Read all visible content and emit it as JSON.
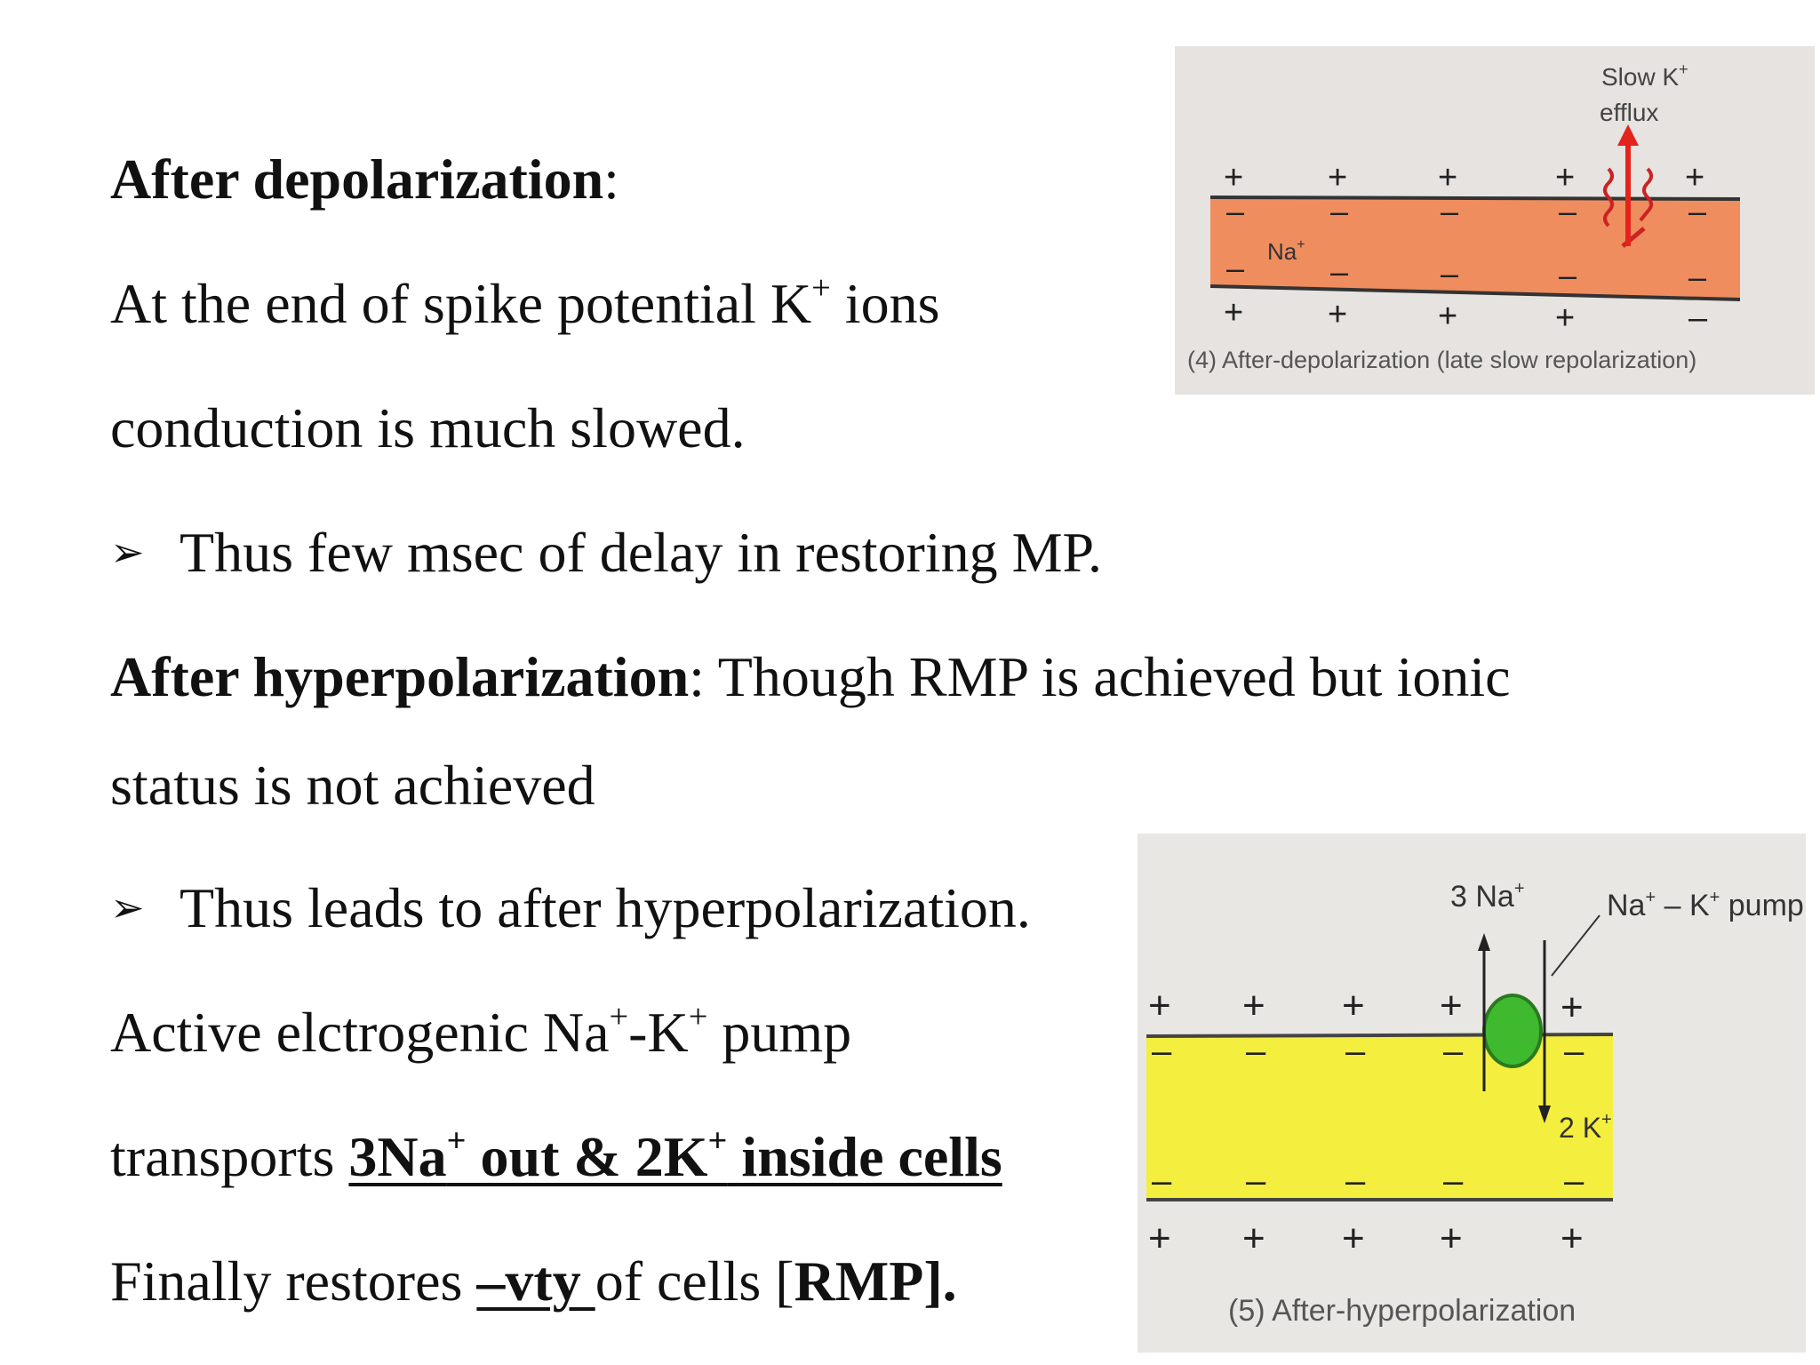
{
  "lines": {
    "after_depol": {
      "heading": "After depolarization",
      "colon": ":"
    },
    "line2": {
      "pre": "At the end of spike potential K",
      "sup": "+",
      "post": " ions"
    },
    "line3": {
      "text": "conduction is much slowed."
    },
    "line4": {
      "bullet": "➢",
      "text": "Thus few msec of delay in restoring MP."
    },
    "line5": {
      "heading": "After hyperpolarization",
      "rest": ": Though RMP is achieved but ionic"
    },
    "line6": {
      "text": "status is not achieved"
    },
    "line7": {
      "bullet": "➢",
      "text": "Thus  leads to after hyperpolarization."
    },
    "line8": {
      "pre": "Active elctrogenic Na",
      "sup1": "+",
      "mid": "-K",
      "sup2": "+",
      "post": " pump"
    },
    "line9": {
      "pre": "transports ",
      "b1": "3Na",
      "sup1": "+",
      "b2": " out & 2K",
      "sup2": "+",
      "b3": " inside cells"
    },
    "line10": {
      "pre": "Finally restores  ",
      "u": "–vty ",
      "mid": "of cells [",
      "b": "RMP].",
      "post": ""
    }
  },
  "figure1": {
    "label_top_1": "Slow K",
    "label_top_sup": "+",
    "label_top_2": "efflux",
    "na_label": "Na",
    "na_sup": "+",
    "caption": "(4) After-depolarization (late slow repolarization)",
    "plus": "+",
    "minus": "–",
    "colors": {
      "band": "#ef8d5f",
      "background": "#e6e3e0",
      "arrow": "#e3231c"
    }
  },
  "figure2": {
    "na_label": "3 Na",
    "na_sup": "+",
    "pump_label": "Na",
    "pump_label_sup1": "+",
    "pump_label_mid": " – K",
    "pump_label_sup2": "+",
    "pump_label_end": " pump",
    "k_label": "2 K",
    "k_sup": "+",
    "caption": "(5) After-hyperpolarization",
    "plus": "+",
    "minus": "–",
    "colors": {
      "band": "#f4ee3f",
      "pump": "#3fba2f",
      "background": "#e9e7e4"
    }
  }
}
